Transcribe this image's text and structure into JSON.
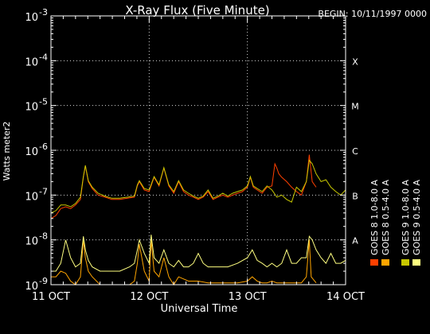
{
  "chart_data": {
    "type": "line",
    "title": "X-Ray Flux (Five Minute)",
    "begin_label": "BEGIN: 10/11/1997 0000",
    "ylabel": "Watts meter2",
    "xlabel": "Universal Time",
    "y_scale": "log",
    "ylim": [
      1e-09,
      0.001
    ],
    "y_ticks": [
      {
        "value": 1e-09,
        "base": "10",
        "exp": "-9"
      },
      {
        "value": 1e-08,
        "base": "10",
        "exp": "-8"
      },
      {
        "value": 1e-07,
        "base": "10",
        "exp": "-7"
      },
      {
        "value": 1e-06,
        "base": "10",
        "exp": "-6"
      },
      {
        "value": 1e-05,
        "base": "10",
        "exp": "-5"
      },
      {
        "value": 0.0001,
        "base": "10",
        "exp": "-4"
      },
      {
        "value": 0.001,
        "base": "10",
        "exp": "-3"
      }
    ],
    "x_unit": "days since 11 OCT 1997 00:00",
    "xlim": [
      0,
      3
    ],
    "x_ticks": [
      {
        "value": 0,
        "label": "11 OCT"
      },
      {
        "value": 1,
        "label": "12 OCT"
      },
      {
        "value": 2,
        "label": "13 OCT"
      },
      {
        "value": 3,
        "label": "14 OCT"
      }
    ],
    "flare_classes": [
      {
        "label": "A",
        "value": 1e-08
      },
      {
        "label": "B",
        "value": 1e-07
      },
      {
        "label": "C",
        "value": 1e-06
      },
      {
        "label": "M",
        "value": 1e-05
      },
      {
        "label": "X",
        "value": 0.0001
      }
    ],
    "grid": true,
    "legend_position": "right",
    "series": [
      {
        "name": "GOES 8 1.0-8.0 A",
        "color": "#ff4000",
        "x": [
          0,
          0.05,
          0.1,
          0.15,
          0.2,
          0.25,
          0.3,
          0.33,
          0.35,
          0.38,
          0.42,
          0.48,
          0.55,
          0.62,
          0.7,
          0.78,
          0.85,
          0.88,
          0.9,
          0.95,
          1.0,
          1.05,
          1.1,
          1.15,
          1.2,
          1.25,
          1.3,
          1.35,
          1.4,
          1.45,
          1.5,
          1.55,
          1.6,
          1.65,
          1.7,
          1.75,
          1.8,
          1.85,
          1.9,
          1.95,
          2.0,
          2.03,
          2.06,
          2.1,
          2.15,
          2.2,
          2.25,
          2.28,
          2.3,
          2.32,
          2.35,
          2.4,
          2.45,
          2.5,
          2.55,
          2.6,
          2.63,
          2.66,
          2.7
        ],
        "y": [
          3e-08,
          3.5e-08,
          5e-08,
          5.5e-08,
          5e-08,
          6e-08,
          8e-08,
          2.5e-07,
          4.5e-07,
          2e-07,
          1.4e-07,
          1e-07,
          9e-08,
          8e-08,
          8e-08,
          8.5e-08,
          9e-08,
          1.6e-07,
          2e-07,
          1.3e-07,
          1.2e-07,
          2.5e-07,
          1.6e-07,
          4e-07,
          1.6e-07,
          1.1e-07,
          2e-07,
          1.2e-07,
          1e-07,
          9e-08,
          8e-08,
          9e-08,
          1.2e-07,
          8e-08,
          9e-08,
          1e-07,
          9e-08,
          1e-07,
          1.1e-07,
          1.2e-07,
          1.5e-07,
          2.5e-07,
          1.5e-07,
          1.3e-07,
          1.1e-07,
          1.5e-07,
          1.6e-07,
          5e-07,
          4e-07,
          3e-07,
          2.5e-07,
          2e-07,
          1.5e-07,
          1.2e-07,
          1e-07,
          2e-07,
          8e-07,
          2e-07,
          1.5e-07
        ]
      },
      {
        "name": "GOES 8 0.5-4.0 A",
        "color": "#ffa500",
        "x": [
          0,
          0.05,
          0.1,
          0.15,
          0.2,
          0.25,
          0.3,
          0.33,
          0.35,
          0.38,
          0.42,
          0.5,
          0.6,
          0.7,
          0.8,
          0.85,
          0.88,
          0.9,
          0.95,
          1.0,
          1.02,
          1.05,
          1.1,
          1.15,
          1.2,
          1.25,
          1.3,
          1.4,
          1.5,
          1.6,
          1.7,
          1.8,
          1.9,
          2.0,
          2.05,
          2.1,
          2.15,
          2.2,
          2.25,
          2.3,
          2.35,
          2.4,
          2.45,
          2.5,
          2.55,
          2.6,
          2.63,
          2.65,
          2.7
        ],
        "y": [
          1.5e-09,
          1.5e-09,
          2e-09,
          1.8e-09,
          1.2e-09,
          1e-09,
          1.5e-09,
          1e-08,
          4e-09,
          2e-09,
          1.5e-09,
          1e-09,
          1e-09,
          1e-09,
          1e-09,
          1.2e-09,
          3e-09,
          8e-09,
          2e-09,
          1.2e-09,
          1e-08,
          2e-09,
          1.5e-09,
          4e-09,
          1.5e-09,
          1e-09,
          1.5e-09,
          1.2e-09,
          1.2e-09,
          1.1e-09,
          1.1e-09,
          1.1e-09,
          1.1e-09,
          1.2e-09,
          1.5e-09,
          1.2e-09,
          1.1e-09,
          1.1e-09,
          1.2e-09,
          1.1e-09,
          1.1e-09,
          1.1e-09,
          1.1e-09,
          1.1e-09,
          1.1e-09,
          1.5e-09,
          1e-08,
          1.5e-09,
          1.1e-09
        ]
      },
      {
        "name": "GOES 9 1.0-8.0 A",
        "color": "#c8c800",
        "x": [
          0,
          0.05,
          0.1,
          0.15,
          0.2,
          0.25,
          0.3,
          0.33,
          0.35,
          0.38,
          0.42,
          0.48,
          0.55,
          0.62,
          0.7,
          0.78,
          0.85,
          0.88,
          0.9,
          0.95,
          1.0,
          1.05,
          1.1,
          1.15,
          1.2,
          1.25,
          1.3,
          1.35,
          1.4,
          1.45,
          1.5,
          1.55,
          1.6,
          1.65,
          1.7,
          1.75,
          1.8,
          1.85,
          1.9,
          1.95,
          2.0,
          2.03,
          2.06,
          2.1,
          2.15,
          2.2,
          2.25,
          2.3,
          2.35,
          2.4,
          2.45,
          2.5,
          2.55,
          2.6,
          2.63,
          2.66,
          2.7,
          2.75,
          2.8,
          2.85,
          2.9,
          2.95,
          3.0
        ],
        "y": [
          4e-08,
          4.5e-08,
          6e-08,
          6e-08,
          5.5e-08,
          6.5e-08,
          9e-08,
          2.6e-07,
          4.6e-07,
          2.1e-07,
          1.5e-07,
          1.1e-07,
          9.5e-08,
          8.5e-08,
          8.5e-08,
          9e-08,
          9.5e-08,
          1.7e-07,
          2.1e-07,
          1.4e-07,
          1.3e-07,
          2.6e-07,
          1.7e-07,
          4.1e-07,
          1.7e-07,
          1.2e-07,
          2.1e-07,
          1.3e-07,
          1.1e-07,
          9.5e-08,
          8.5e-08,
          9.5e-08,
          1.3e-07,
          8.5e-08,
          9.5e-08,
          1.1e-07,
          9.5e-08,
          1.1e-07,
          1.2e-07,
          1.3e-07,
          1.6e-07,
          2.6e-07,
          1.6e-07,
          1.4e-07,
          1.2e-07,
          1.6e-07,
          1.3e-07,
          9e-08,
          1e-07,
          8e-08,
          7e-08,
          1.5e-07,
          1.2e-07,
          2e-07,
          6e-07,
          5e-07,
          3e-07,
          2e-07,
          2.2e-07,
          1.5e-07,
          1.2e-07,
          1e-07,
          1.3e-07
        ]
      },
      {
        "name": "GOES 9 0.5-4.0 A",
        "color": "#ffff80",
        "x": [
          0,
          0.05,
          0.1,
          0.15,
          0.2,
          0.25,
          0.3,
          0.33,
          0.35,
          0.38,
          0.42,
          0.5,
          0.6,
          0.7,
          0.8,
          0.85,
          0.88,
          0.9,
          0.95,
          1.0,
          1.02,
          1.05,
          1.1,
          1.15,
          1.2,
          1.25,
          1.3,
          1.35,
          1.4,
          1.45,
          1.5,
          1.55,
          1.6,
          1.7,
          1.8,
          1.9,
          2.0,
          2.05,
          2.1,
          2.15,
          2.2,
          2.25,
          2.3,
          2.35,
          2.4,
          2.45,
          2.5,
          2.55,
          2.6,
          2.63,
          2.66,
          2.7,
          2.75,
          2.8,
          2.85,
          2.9,
          2.95,
          3.0
        ],
        "y": [
          2e-09,
          2e-09,
          3e-09,
          1e-08,
          4e-09,
          2.5e-09,
          3e-09,
          1.2e-08,
          6e-09,
          3.5e-09,
          2.5e-09,
          2e-09,
          2e-09,
          2e-09,
          2.5e-09,
          3e-09,
          6e-09,
          1e-08,
          5e-09,
          3e-09,
          1.3e-08,
          4e-09,
          3e-09,
          6e-09,
          3e-09,
          2.5e-09,
          3.5e-09,
          2.5e-09,
          2.5e-09,
          3e-09,
          5e-09,
          3e-09,
          2.5e-09,
          2.5e-09,
          2.5e-09,
          3e-09,
          4e-09,
          6e-09,
          3.5e-09,
          3e-09,
          2.5e-09,
          3e-09,
          2.5e-09,
          3e-09,
          6e-09,
          3e-09,
          3e-09,
          4e-09,
          4e-09,
          1.2e-08,
          1e-08,
          6e-09,
          4e-09,
          3e-09,
          5e-09,
          3e-09,
          3e-09,
          3.5e-09
        ]
      }
    ]
  }
}
